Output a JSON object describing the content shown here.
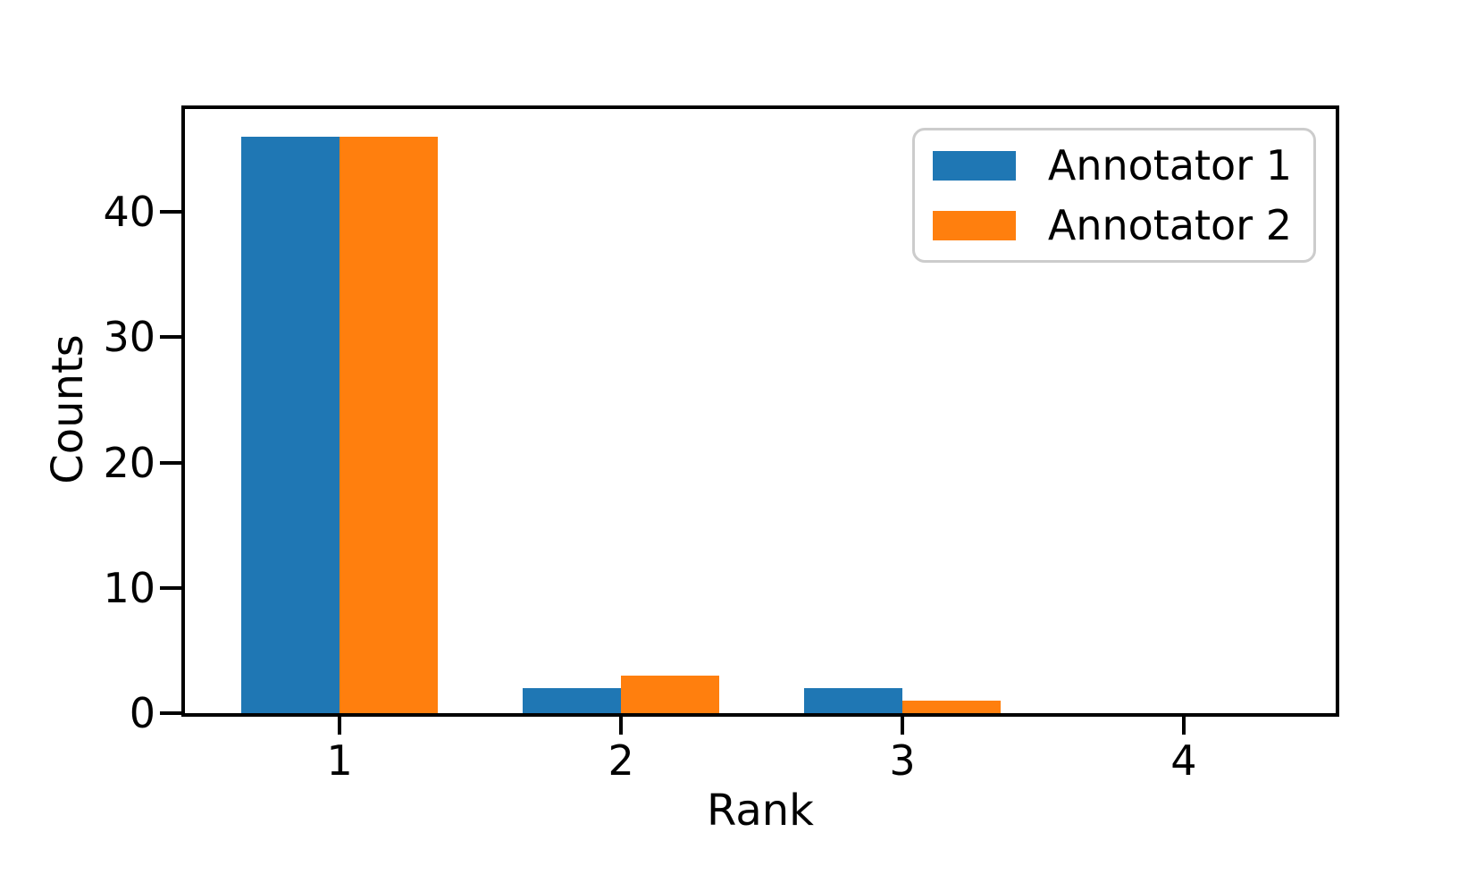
{
  "chart_data": {
    "type": "bar",
    "title": "",
    "xlabel": "Rank",
    "ylabel": "Counts",
    "categories": [
      "1",
      "2",
      "3",
      "4"
    ],
    "x": [
      1,
      2,
      3,
      4
    ],
    "series": [
      {
        "name": "Annotator 1",
        "color": "#1f77b4",
        "values": [
          46,
          2,
          2,
          0
        ]
      },
      {
        "name": "Annotator 2",
        "color": "#ff7f0e",
        "values": [
          46,
          3,
          1,
          0
        ]
      }
    ],
    "bar_width": 0.35,
    "xlim": [
      0.45,
      4.54
    ],
    "ylim": [
      0,
      48.2
    ],
    "yticks": [
      0,
      10,
      20,
      30,
      40
    ],
    "xticks": [
      1,
      2,
      3,
      4
    ],
    "grid": false,
    "legend": {
      "position": "upper right",
      "border_color": "#cccccc",
      "background": "#ffffff"
    },
    "axis_color": "#000000",
    "plot_background": "#ffffff"
  }
}
